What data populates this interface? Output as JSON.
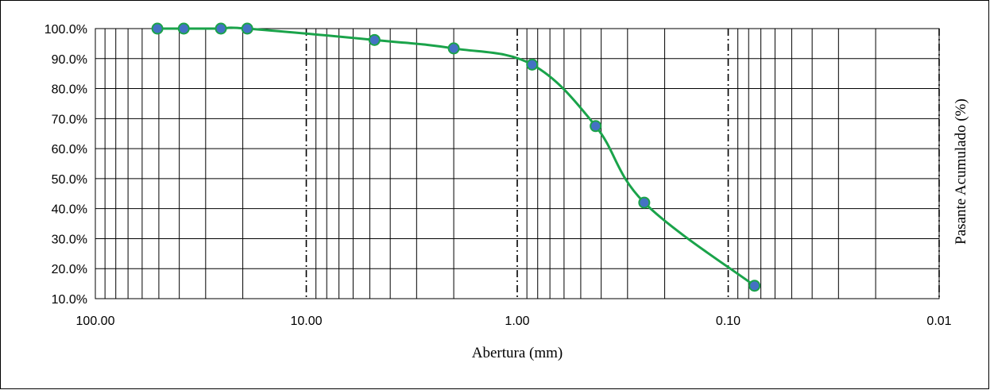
{
  "chart_data": {
    "type": "line",
    "title": "",
    "xlabel": "Abertura (mm)",
    "ylabel": "Pasante Acumulado (%)",
    "x_scale": "log",
    "x_reversed": true,
    "xlim": [
      100,
      0.01
    ],
    "ylim": [
      10,
      100
    ],
    "x_tick_values": [
      100,
      10,
      1,
      0.1,
      0.01
    ],
    "x_tick_labels": [
      "100.00",
      "10.00",
      "1.00",
      "0.10",
      "0.01"
    ],
    "y_tick_values": [
      10,
      20,
      30,
      40,
      50,
      60,
      70,
      80,
      90,
      100
    ],
    "y_tick_labels": [
      "10.0%",
      "20.0%",
      "30.0%",
      "40.0%",
      "50.0%",
      "60.0%",
      "70.0%",
      "80.0%",
      "90.0%",
      "100.0%"
    ],
    "grid": true,
    "legend": "none",
    "series": [
      {
        "x": [
          50.8,
          38.1,
          25.4,
          19.05,
          4.75,
          2.0,
          0.85,
          0.425,
          0.25,
          0.075
        ],
        "values": [
          100.0,
          100.0,
          100.0,
          100.0,
          96.2,
          93.4,
          88.0,
          67.5,
          42.0,
          14.3
        ],
        "line_color": "#1aa34a",
        "marker_color": "#4472c4"
      }
    ]
  }
}
